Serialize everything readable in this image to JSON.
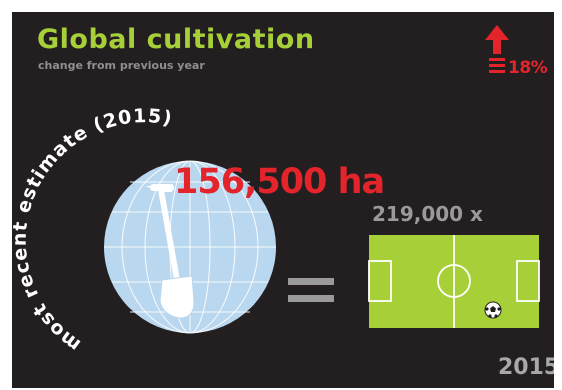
{
  "header": {
    "title": "Global cultivation",
    "subtitle": "change from previous year"
  },
  "change": {
    "direction": "up",
    "percent": "18%",
    "color": "#e3242b"
  },
  "estimate": {
    "caption": "most recent estimate (2015)",
    "value": "156,500 ha"
  },
  "comparison": {
    "multiplier": "219,000 x",
    "equals_icon": "equals-sign",
    "object_icon": "soccer-field-icon"
  },
  "footer": {
    "year": "2015"
  },
  "colors": {
    "background": "#231f20",
    "accent_green": "#a6cf38",
    "accent_red": "#e3242b",
    "globe": "#b9d7ef",
    "muted_gray": "#9a9a9a"
  },
  "icons": [
    "globe-icon",
    "shovel-icon",
    "up-arrow-icon",
    "soccer-ball-icon"
  ]
}
